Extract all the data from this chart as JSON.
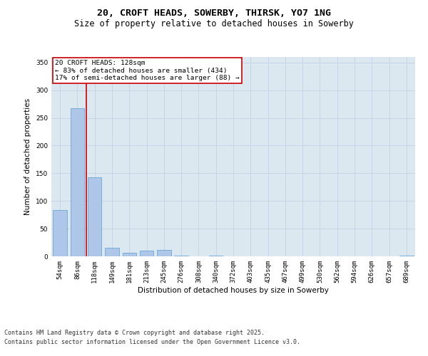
{
  "title1": "20, CROFT HEADS, SOWERBY, THIRSK, YO7 1NG",
  "title2": "Size of property relative to detached houses in Sowerby",
  "xlabel": "Distribution of detached houses by size in Sowerby",
  "ylabel": "Number of detached properties",
  "categories": [
    "54sqm",
    "86sqm",
    "118sqm",
    "149sqm",
    "181sqm",
    "213sqm",
    "245sqm",
    "276sqm",
    "308sqm",
    "340sqm",
    "372sqm",
    "403sqm",
    "435sqm",
    "467sqm",
    "499sqm",
    "530sqm",
    "562sqm",
    "594sqm",
    "626sqm",
    "657sqm",
    "689sqm"
  ],
  "values": [
    83,
    268,
    143,
    15,
    6,
    10,
    11,
    1,
    0,
    1,
    0,
    0,
    0,
    0,
    0,
    0,
    0,
    0,
    0,
    0,
    1
  ],
  "bar_color": "#aec6e8",
  "bar_edge_color": "#5a9fd4",
  "vline_color": "#cc0000",
  "vline_x": 1.5,
  "annotation_text": "20 CROFT HEADS: 128sqm\n← 83% of detached houses are smaller (434)\n17% of semi-detached houses are larger (88) →",
  "annotation_box_color": "#ffffff",
  "annotation_box_edge_color": "#cc0000",
  "ylim": [
    0,
    360
  ],
  "yticks": [
    0,
    50,
    100,
    150,
    200,
    250,
    300,
    350
  ],
  "grid_color": "#c8d4e8",
  "background_color": "#dce8f0",
  "footer1": "Contains HM Land Registry data © Crown copyright and database right 2025.",
  "footer2": "Contains public sector information licensed under the Open Government Licence v3.0.",
  "title_fontsize": 9.5,
  "subtitle_fontsize": 8.5,
  "axis_label_fontsize": 7.5,
  "tick_fontsize": 6.5,
  "annotation_fontsize": 6.8,
  "footer_fontsize": 6
}
